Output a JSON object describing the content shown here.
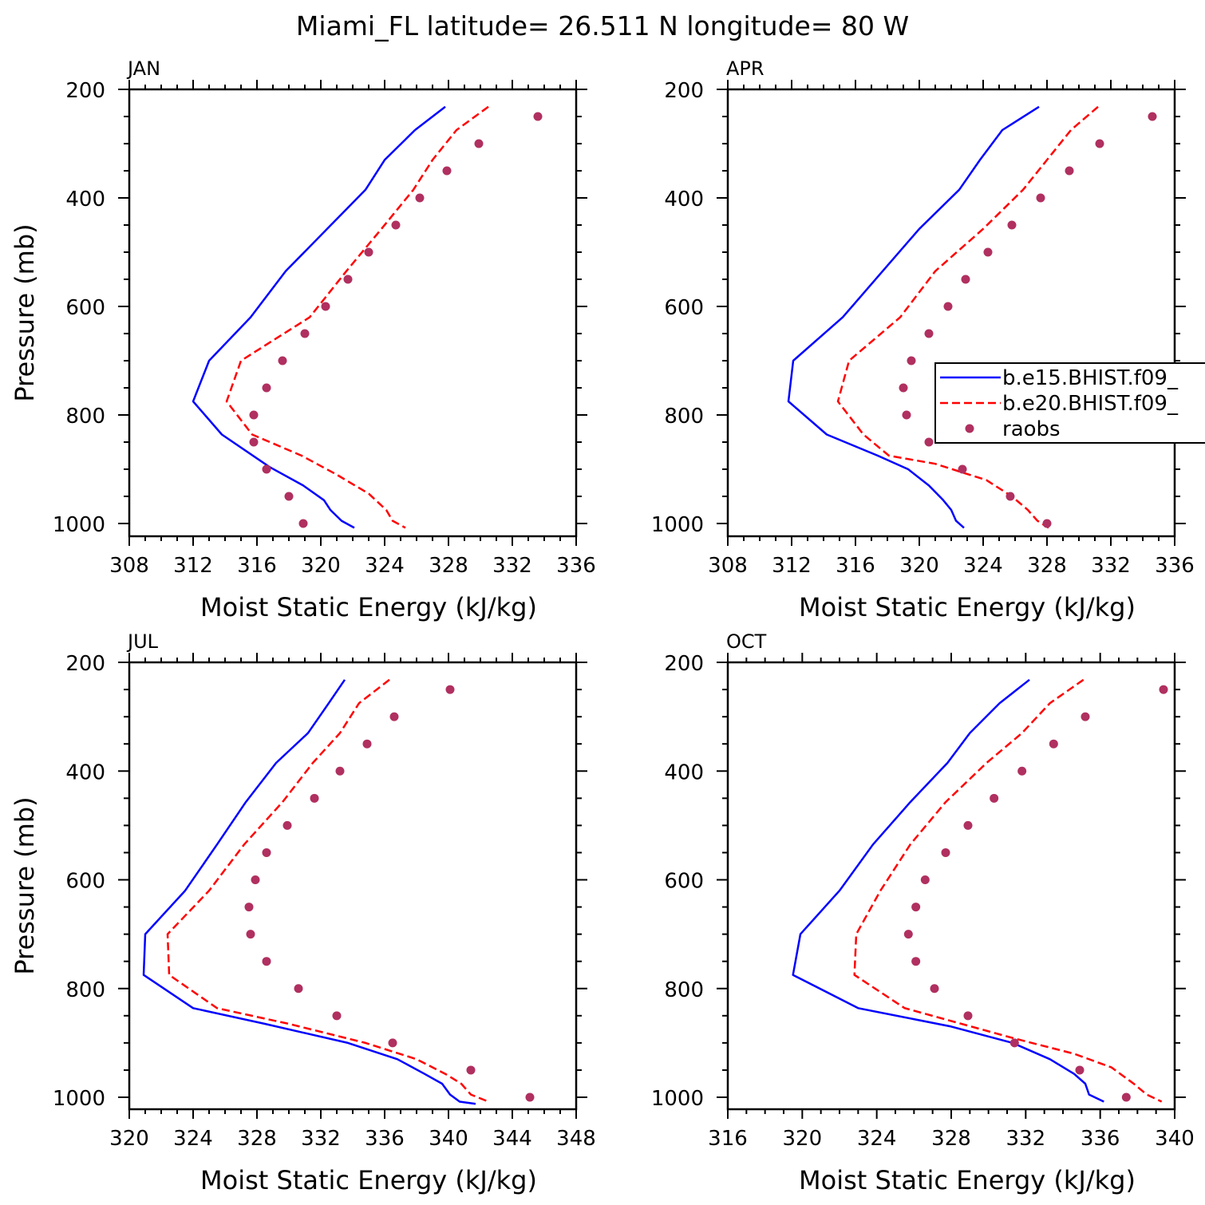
{
  "figure": {
    "title": "Miami_FL  latitude= 26.511 N longitude= 80 W"
  },
  "legend": {
    "entries": [
      {
        "label": "b.e15.BHIST.f09_",
        "color": "#0000ff",
        "style": "solid"
      },
      {
        "label": "b.e20.BHIST.f09_",
        "color": "#ff0000",
        "style": "dashed"
      },
      {
        "label": "raobs",
        "color": "#b03060",
        "style": "markers"
      }
    ],
    "placement": "right of APR panel, overlapping"
  },
  "colors": {
    "e15": "#0000ff",
    "e20": "#ff0000",
    "raobs": "#b03060"
  },
  "chart_data": [
    {
      "type": "line",
      "panel": "JAN",
      "xlabel": "Moist Static Energy (kJ/kg)",
      "ylabel": "Pressure (mb)",
      "xlim": [
        308,
        336
      ],
      "ylim": [
        1000,
        200
      ],
      "xticks": [
        308,
        312,
        316,
        320,
        324,
        328,
        332,
        336
      ],
      "yticks": [
        200,
        400,
        600,
        800,
        1000
      ],
      "series": [
        {
          "name": "b.e15.BHIST.f09_",
          "style": "solid",
          "color": "#0000ff",
          "points": [
            [
              327.8,
              232
            ],
            [
              325.9,
              275
            ],
            [
              324.0,
              330
            ],
            [
              322.8,
              385
            ],
            [
              320.4,
              457
            ],
            [
              317.8,
              535
            ],
            [
              315.6,
              620
            ],
            [
              313.0,
              700
            ],
            [
              312.0,
              775
            ],
            [
              313.8,
              836
            ],
            [
              316.8,
              896
            ],
            [
              318.9,
              930
            ],
            [
              320.2,
              957
            ],
            [
              320.6,
              975
            ],
            [
              321.3,
              995
            ],
            [
              322.1,
              1008
            ]
          ]
        },
        {
          "name": "b.e20.BHIST.f09_",
          "style": "dashed",
          "color": "#ff0000",
          "points": [
            [
              330.5,
              232
            ],
            [
              328.5,
              275
            ],
            [
              327.0,
              330
            ],
            [
              325.8,
              385
            ],
            [
              323.8,
              457
            ],
            [
              321.6,
              535
            ],
            [
              319.3,
              620
            ],
            [
              315.0,
              700
            ],
            [
              314.1,
              775
            ],
            [
              315.7,
              836
            ],
            [
              318.8,
              875
            ],
            [
              321.0,
              910
            ],
            [
              323.0,
              945
            ],
            [
              324.1,
              975
            ],
            [
              324.5,
              995
            ],
            [
              325.3,
              1008
            ]
          ]
        },
        {
          "name": "raobs",
          "style": "markers",
          "color": "#b03060",
          "points": [
            [
              333.6,
              250
            ],
            [
              329.9,
              300
            ],
            [
              327.9,
              350
            ],
            [
              326.2,
              400
            ],
            [
              324.7,
              450
            ],
            [
              323.0,
              500
            ],
            [
              321.7,
              550
            ],
            [
              320.3,
              600
            ],
            [
              319.0,
              650
            ],
            [
              317.6,
              700
            ],
            [
              316.6,
              750
            ],
            [
              315.8,
              800
            ],
            [
              315.8,
              850
            ],
            [
              316.6,
              900
            ],
            [
              318.0,
              950
            ],
            [
              318.9,
              1000
            ]
          ]
        }
      ]
    },
    {
      "type": "line",
      "panel": "APR",
      "xlabel": "Moist Static Energy (kJ/kg)",
      "ylabel": "",
      "xlim": [
        308,
        336
      ],
      "ylim": [
        1000,
        200
      ],
      "xticks": [
        308,
        312,
        316,
        320,
        324,
        328,
        332,
        336
      ],
      "yticks": [
        200,
        400,
        600,
        800,
        1000
      ],
      "series": [
        {
          "name": "b.e15.BHIST.f09_",
          "style": "solid",
          "color": "#0000ff",
          "points": [
            [
              327.5,
              232
            ],
            [
              325.2,
              275
            ],
            [
              323.8,
              330
            ],
            [
              322.5,
              385
            ],
            [
              320.0,
              457
            ],
            [
              317.7,
              535
            ],
            [
              315.2,
              620
            ],
            [
              312.1,
              700
            ],
            [
              311.8,
              775
            ],
            [
              314.2,
              836
            ],
            [
              317.4,
              875
            ],
            [
              319.3,
              900
            ],
            [
              320.6,
              930
            ],
            [
              321.5,
              957
            ],
            [
              322.0,
              975
            ],
            [
              322.3,
              995
            ],
            [
              322.8,
              1008
            ]
          ]
        },
        {
          "name": "b.e20.BHIST.f09_",
          "style": "dashed",
          "color": "#ff0000",
          "points": [
            [
              331.2,
              232
            ],
            [
              329.5,
              275
            ],
            [
              328.0,
              330
            ],
            [
              326.5,
              385
            ],
            [
              324.0,
              457
            ],
            [
              321.0,
              535
            ],
            [
              318.8,
              620
            ],
            [
              315.6,
              700
            ],
            [
              314.9,
              775
            ],
            [
              316.5,
              836
            ],
            [
              318.1,
              875
            ],
            [
              321.0,
              890
            ],
            [
              324.2,
              920
            ],
            [
              325.8,
              950
            ],
            [
              326.8,
              975
            ],
            [
              327.4,
              995
            ],
            [
              328.1,
              1008
            ]
          ]
        },
        {
          "name": "raobs",
          "style": "markers",
          "color": "#b03060",
          "points": [
            [
              334.6,
              250
            ],
            [
              331.3,
              300
            ],
            [
              329.4,
              350
            ],
            [
              327.6,
              400
            ],
            [
              325.8,
              450
            ],
            [
              324.3,
              500
            ],
            [
              322.9,
              550
            ],
            [
              321.8,
              600
            ],
            [
              320.6,
              650
            ],
            [
              319.5,
              700
            ],
            [
              319.0,
              750
            ],
            [
              319.2,
              800
            ],
            [
              320.6,
              850
            ],
            [
              322.7,
              900
            ],
            [
              325.7,
              950
            ],
            [
              328.0,
              1000
            ]
          ]
        }
      ]
    },
    {
      "type": "line",
      "panel": "JUL",
      "xlabel": "Moist Static Energy (kJ/kg)",
      "ylabel": "Pressure (mb)",
      "xlim": [
        320,
        348
      ],
      "ylim": [
        1000,
        200
      ],
      "xticks": [
        320,
        324,
        328,
        332,
        336,
        340,
        344,
        348
      ],
      "yticks": [
        200,
        400,
        600,
        800,
        1000
      ],
      "series": [
        {
          "name": "b.e15.BHIST.f09_",
          "style": "solid",
          "color": "#0000ff",
          "points": [
            [
              333.5,
              232
            ],
            [
              332.5,
              275
            ],
            [
              331.2,
              330
            ],
            [
              329.2,
              385
            ],
            [
              327.3,
              457
            ],
            [
              325.5,
              535
            ],
            [
              323.5,
              620
            ],
            [
              321.0,
              700
            ],
            [
              320.9,
              775
            ],
            [
              324.0,
              836
            ],
            [
              328.5,
              865
            ],
            [
              333.7,
              900
            ],
            [
              336.8,
              930
            ],
            [
              338.5,
              957
            ],
            [
              339.6,
              975
            ],
            [
              340.1,
              995
            ],
            [
              340.7,
              1008
            ],
            [
              341.7,
              1012
            ]
          ]
        },
        {
          "name": "b.e20.BHIST.f09_",
          "style": "dashed",
          "color": "#ff0000",
          "points": [
            [
              336.3,
              232
            ],
            [
              334.4,
              275
            ],
            [
              333.2,
              330
            ],
            [
              331.5,
              385
            ],
            [
              329.6,
              457
            ],
            [
              327.2,
              535
            ],
            [
              325.0,
              620
            ],
            [
              322.4,
              700
            ],
            [
              322.5,
              775
            ],
            [
              325.5,
              836
            ],
            [
              330.0,
              865
            ],
            [
              334.8,
              900
            ],
            [
              338.0,
              930
            ],
            [
              339.8,
              957
            ],
            [
              340.8,
              975
            ],
            [
              341.4,
              995
            ],
            [
              342.5,
              1008
            ]
          ]
        },
        {
          "name": "raobs",
          "style": "markers",
          "color": "#b03060",
          "points": [
            [
              340.1,
              250
            ],
            [
              336.6,
              300
            ],
            [
              334.9,
              350
            ],
            [
              333.2,
              400
            ],
            [
              331.6,
              450
            ],
            [
              329.9,
              500
            ],
            [
              328.6,
              550
            ],
            [
              327.9,
              600
            ],
            [
              327.5,
              650
            ],
            [
              327.6,
              700
            ],
            [
              328.6,
              750
            ],
            [
              330.6,
              800
            ],
            [
              333.0,
              850
            ],
            [
              336.5,
              900
            ],
            [
              341.4,
              950
            ],
            [
              345.1,
              1000
            ]
          ]
        }
      ]
    },
    {
      "type": "line",
      "panel": "OCT",
      "xlabel": "Moist Static Energy (kJ/kg)",
      "ylabel": "",
      "xlim": [
        316,
        340
      ],
      "ylim": [
        1000,
        200
      ],
      "xticks": [
        316,
        320,
        324,
        328,
        332,
        336,
        340
      ],
      "yticks": [
        200,
        400,
        600,
        800,
        1000
      ],
      "series": [
        {
          "name": "b.e15.BHIST.f09_",
          "style": "solid",
          "color": "#0000ff",
          "points": [
            [
              332.2,
              232
            ],
            [
              330.6,
              275
            ],
            [
              329.0,
              330
            ],
            [
              327.8,
              385
            ],
            [
              325.8,
              457
            ],
            [
              323.8,
              535
            ],
            [
              322.0,
              620
            ],
            [
              319.9,
              700
            ],
            [
              319.5,
              775
            ],
            [
              323.0,
              836
            ],
            [
              328.0,
              870
            ],
            [
              331.3,
              900
            ],
            [
              333.3,
              930
            ],
            [
              334.6,
              957
            ],
            [
              335.2,
              975
            ],
            [
              335.4,
              995
            ],
            [
              336.2,
              1008
            ]
          ]
        },
        {
          "name": "b.e20.BHIST.f09_",
          "style": "dashed",
          "color": "#ff0000",
          "points": [
            [
              335.1,
              232
            ],
            [
              333.3,
              275
            ],
            [
              331.8,
              330
            ],
            [
              329.9,
              385
            ],
            [
              327.7,
              457
            ],
            [
              325.8,
              535
            ],
            [
              324.2,
              620
            ],
            [
              322.9,
              700
            ],
            [
              322.8,
              775
            ],
            [
              325.5,
              836
            ],
            [
              331.2,
              890
            ],
            [
              334.6,
              920
            ],
            [
              336.6,
              945
            ],
            [
              337.8,
              975
            ],
            [
              338.5,
              995
            ],
            [
              339.3,
              1008
            ]
          ]
        },
        {
          "name": "raobs",
          "style": "markers",
          "color": "#b03060",
          "points": [
            [
              339.4,
              250
            ],
            [
              335.2,
              300
            ],
            [
              333.5,
              350
            ],
            [
              331.8,
              400
            ],
            [
              330.3,
              450
            ],
            [
              328.9,
              500
            ],
            [
              327.7,
              550
            ],
            [
              326.6,
              600
            ],
            [
              326.1,
              650
            ],
            [
              325.7,
              700
            ],
            [
              326.1,
              750
            ],
            [
              327.1,
              800
            ],
            [
              328.9,
              850
            ],
            [
              331.4,
              900
            ],
            [
              334.9,
              950
            ],
            [
              337.4,
              1000
            ]
          ]
        }
      ]
    }
  ]
}
